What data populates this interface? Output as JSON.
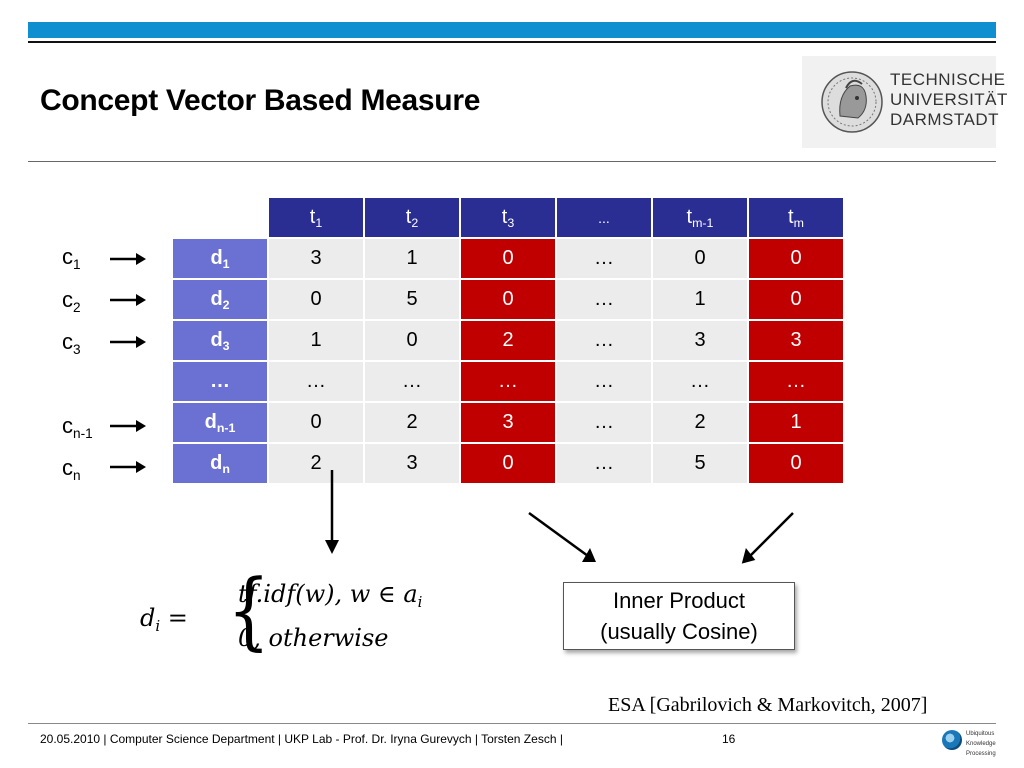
{
  "slide": {
    "title": "Concept Vector Based Measure",
    "logo_lines": [
      "TECHNISCHE",
      "UNIVERSITÄT",
      "DARMSTADT"
    ],
    "accent_color": "#0f8fd0"
  },
  "table": {
    "columns": [
      {
        "base": "t",
        "sub": "1"
      },
      {
        "base": "t",
        "sub": "2"
      },
      {
        "base": "t",
        "sub": "3"
      },
      {
        "base": "...",
        "sub": ""
      },
      {
        "base": "t",
        "sub": "m-1"
      },
      {
        "base": "t",
        "sub": "m"
      }
    ],
    "rows": [
      {
        "concept": {
          "base": "c",
          "sub": "1"
        },
        "doc": {
          "base": "d",
          "sub": "1"
        },
        "values": [
          "3",
          "1",
          "0",
          "…",
          "0",
          "0"
        ]
      },
      {
        "concept": {
          "base": "c",
          "sub": "2"
        },
        "doc": {
          "base": "d",
          "sub": "2"
        },
        "values": [
          "0",
          "5",
          "0",
          "…",
          "1",
          "0"
        ]
      },
      {
        "concept": {
          "base": "c",
          "sub": "3"
        },
        "doc": {
          "base": "d",
          "sub": "3"
        },
        "values": [
          "1",
          "0",
          "2",
          "…",
          "3",
          "3"
        ]
      },
      {
        "concept": {
          "base": "",
          "sub": ""
        },
        "doc": {
          "base": "…",
          "sub": ""
        },
        "values": [
          "…",
          "…",
          "…",
          "…",
          "…",
          "…"
        ]
      },
      {
        "concept": {
          "base": "c",
          "sub": "n-1"
        },
        "doc": {
          "base": "d",
          "sub": "n-1"
        },
        "values": [
          "0",
          "2",
          "3",
          "…",
          "2",
          "1"
        ]
      },
      {
        "concept": {
          "base": "c",
          "sub": "n"
        },
        "doc": {
          "base": "d",
          "sub": "n"
        },
        "values": [
          "2",
          "3",
          "0",
          "…",
          "5",
          "0"
        ]
      }
    ],
    "highlight_color": "#c00000",
    "header_color": "#2a2e92",
    "rowhead_color": "#6b71d3"
  },
  "formula": {
    "lhs": "d",
    "lhs_sub": "i",
    "equals": "=",
    "case1": "tf.idf(w),  w ∈ a",
    "case1_sub": "i",
    "case2": "0,  otherwise"
  },
  "box": {
    "line1": "Inner Product",
    "line2": "(usually Cosine)"
  },
  "citation": "ESA [Gabrilovich & Markovitch, 2007]",
  "footer": {
    "text": "20.05.2010  |  Computer Science Department   |   UKP Lab  -  Prof. Dr. Iryna Gurevych   | Torsten Zesch |",
    "page": "16",
    "ukp_lines": [
      "Ubiquitous",
      "Knowledge",
      "Processing"
    ]
  }
}
